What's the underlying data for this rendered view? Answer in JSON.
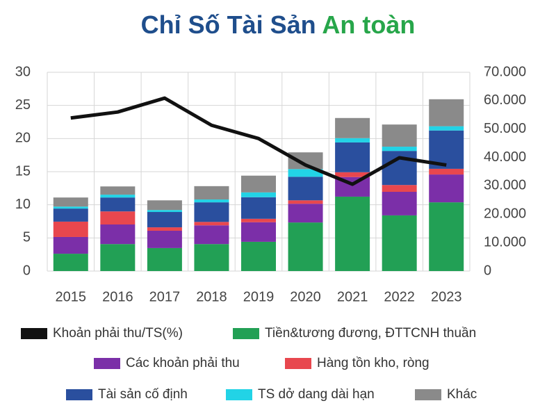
{
  "chart_data": {
    "type": "combo",
    "title": "Chỉ Số Tài Sản",
    "title_accent": "An toàn",
    "title_color": "#1f4e8c",
    "title_accent_color": "#27a64a",
    "categories": [
      "2015",
      "2016",
      "2017",
      "2018",
      "2019",
      "2020",
      "2021",
      "2022",
      "2023"
    ],
    "series": [
      {
        "name": "Khoản phải thu/TS(%)",
        "type": "line",
        "axis": "y",
        "color": "#111111",
        "values": [
          23.1,
          24.0,
          26.1,
          22.0,
          20.0,
          16.0,
          13.1,
          17.1,
          16.0
        ]
      },
      {
        "name": "Tiền&tương đương, ĐTTCNH thuần",
        "type": "bar",
        "axis": "y2",
        "color": "#22a055",
        "values": [
          6100,
          9500,
          8100,
          9500,
          10300,
          17100,
          26200,
          19600,
          24200
        ]
      },
      {
        "name": "Các khoản phải thu",
        "type": "bar",
        "axis": "y2",
        "color": "#7b2fa8",
        "values": [
          5900,
          6900,
          6100,
          6600,
          6900,
          6600,
          6900,
          8300,
          9800
        ]
      },
      {
        "name": "Hàng tồn kho, ròng",
        "type": "bar",
        "axis": "y2",
        "color": "#e8474e",
        "values": [
          5400,
          4600,
          1200,
          1200,
          1200,
          1200,
          1700,
          2400,
          2000
        ]
      },
      {
        "name": "Tài sản cố định",
        "type": "bar",
        "axis": "y2",
        "color": "#2a4f9e",
        "values": [
          4600,
          4900,
          5400,
          6900,
          7600,
          8300,
          10500,
          12000,
          13500
        ]
      },
      {
        "name": "TS dở dang dài hạn",
        "type": "bar",
        "axis": "y2",
        "color": "#22d3e6",
        "values": [
          700,
          1000,
          700,
          1000,
          1700,
          2700,
          1500,
          1500,
          1500
        ]
      },
      {
        "name": "Khác",
        "type": "bar",
        "axis": "y2",
        "color": "#8a8a8a",
        "values": [
          3200,
          2900,
          3400,
          4700,
          5900,
          5900,
          7100,
          7800,
          9500
        ]
      }
    ],
    "ylim": [
      0,
      30
    ],
    "yticks": [
      0,
      5,
      10,
      15,
      20,
      25,
      30
    ],
    "y2lim": [
      0,
      70000
    ],
    "y2ticks": [
      0,
      {
        "value": 10000,
        "label": "10.000"
      },
      {
        "value": 20000,
        "label": "20.000"
      },
      {
        "value": 30000,
        "label": "30.000"
      },
      {
        "value": 40000,
        "label": "40.000"
      },
      {
        "value": 50000,
        "label": "50.000"
      },
      {
        "value": 60000,
        "label": "60.000"
      },
      {
        "value": 70000,
        "label": "70.000"
      }
    ],
    "grid": true,
    "stacked": true
  }
}
